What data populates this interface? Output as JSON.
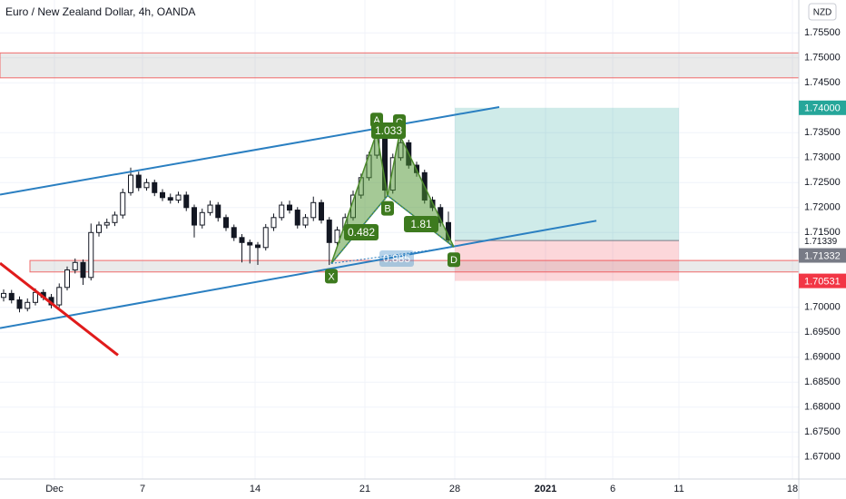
{
  "chart_data": {
    "type": "candlestick",
    "title": "Euro / New Zealand Dollar, 4h, OANDA",
    "currency_button": "NZD",
    "x": [
      -2.24,
      -1.89,
      -1.54,
      -1.19,
      -0.84,
      -0.49,
      -0.14,
      0.21,
      0.56,
      0.91,
      1.26,
      1.61,
      1.96,
      2.31,
      2.66,
      3.01,
      3.36,
      3.71,
      4.06,
      4.41,
      4.76,
      5.11,
      5.46,
      5.81,
      6.16,
      6.51,
      6.86,
      7.21,
      7.56,
      7.91,
      8.26,
      8.61,
      8.96,
      9.31,
      9.66,
      10.01,
      10.36,
      10.71,
      11.06,
      11.41,
      11.76,
      12.11,
      12.46,
      12.81,
      13.16,
      13.51,
      13.86,
      14.21,
      14.56,
      14.91,
      15.26,
      15.61,
      15.96,
      16.31,
      16.66,
      17.01,
      17.36
    ],
    "open": [
      1.702,
      1.7028,
      1.7015,
      1.6998,
      1.701,
      1.703,
      1.702,
      1.7005,
      1.704,
      1.7075,
      1.709,
      1.706,
      1.715,
      1.7165,
      1.717,
      1.7185,
      1.723,
      1.7265,
      1.724,
      1.725,
      1.723,
      1.722,
      1.7215,
      1.7225,
      1.72,
      1.7165,
      1.719,
      1.7205,
      1.718,
      1.716,
      1.714,
      1.713,
      1.7125,
      1.712,
      1.716,
      1.718,
      1.7205,
      1.7195,
      1.7165,
      1.718,
      1.721,
      1.7175,
      1.713,
      1.7155,
      1.718,
      1.7225,
      1.726,
      1.7305,
      1.7345,
      1.7235,
      1.73,
      1.733,
      1.7285,
      1.727,
      1.7215,
      1.72,
      1.717
    ],
    "high": [
      1.7036,
      1.7035,
      1.7022,
      1.7018,
      1.7038,
      1.7036,
      1.7027,
      1.7048,
      1.7082,
      1.7098,
      1.7096,
      1.7168,
      1.7172,
      1.7178,
      1.7192,
      1.7238,
      1.728,
      1.7272,
      1.7258,
      1.7256,
      1.7237,
      1.7228,
      1.7232,
      1.7232,
      1.7206,
      1.7198,
      1.7214,
      1.7211,
      1.7186,
      1.7166,
      1.7147,
      1.7136,
      1.7131,
      1.7167,
      1.7188,
      1.7212,
      1.7214,
      1.7201,
      1.7187,
      1.7222,
      1.7216,
      1.7181,
      1.7162,
      1.7188,
      1.7234,
      1.7268,
      1.7312,
      1.736,
      1.735,
      1.7308,
      1.734,
      1.7336,
      1.7292,
      1.7276,
      1.7222,
      1.7207,
      1.7192
    ],
    "low": [
      1.7012,
      1.7008,
      1.699,
      1.6992,
      1.7004,
      1.7014,
      1.6998,
      1.7,
      1.7034,
      1.7068,
      1.7045,
      1.7054,
      1.7142,
      1.7158,
      1.7163,
      1.7178,
      1.7224,
      1.7233,
      1.7234,
      1.7223,
      1.7213,
      1.7208,
      1.7209,
      1.7193,
      1.714,
      1.7158,
      1.7184,
      1.7172,
      1.7153,
      1.7133,
      1.709,
      1.7088,
      1.7085,
      1.7114,
      1.7153,
      1.7174,
      1.7188,
      1.7158,
      1.7159,
      1.7173,
      1.7168,
      1.7085,
      1.7124,
      1.7149,
      1.7174,
      1.7218,
      1.7254,
      1.7298,
      1.7215,
      1.7228,
      1.7294,
      1.7278,
      1.7262,
      1.7208,
      1.7193,
      1.7162,
      1.7128
    ],
    "close": [
      1.7028,
      1.7015,
      1.6998,
      1.701,
      1.703,
      1.702,
      1.7005,
      1.704,
      1.7075,
      1.709,
      1.706,
      1.715,
      1.7165,
      1.717,
      1.7185,
      1.723,
      1.7265,
      1.724,
      1.725,
      1.723,
      1.722,
      1.7215,
      1.7225,
      1.72,
      1.7165,
      1.719,
      1.7205,
      1.718,
      1.716,
      1.714,
      1.713,
      1.7125,
      1.712,
      1.716,
      1.718,
      1.7205,
      1.7195,
      1.7165,
      1.718,
      1.721,
      1.7175,
      1.713,
      1.7155,
      1.718,
      1.7225,
      1.726,
      1.7305,
      1.7345,
      1.7235,
      1.73,
      1.733,
      1.7285,
      1.727,
      1.7215,
      1.72,
      1.717,
      1.7135
    ],
    "xlim": [
      -2.4,
      32.8
    ],
    "ylim": [
      1.6656,
      1.7616
    ],
    "xticks": [
      {
        "value": 0,
        "label": "Dec"
      },
      {
        "value": 3.88,
        "label": "7"
      },
      {
        "value": 8.84,
        "label": "14"
      },
      {
        "value": 13.68,
        "label": "21"
      },
      {
        "value": 17.64,
        "label": "28"
      },
      {
        "value": 21.64,
        "label": "2021"
      },
      {
        "value": 24.6,
        "label": "6"
      },
      {
        "value": 27.52,
        "label": "11"
      },
      {
        "value": 32.52,
        "label": "18"
      }
    ],
    "yticks": [
      {
        "value": 1.755,
        "label": "1.75500"
      },
      {
        "value": 1.75,
        "label": "1.75000"
      },
      {
        "value": 1.745,
        "label": "1.74500"
      },
      {
        "value": 1.735,
        "label": "1.73500"
      },
      {
        "value": 1.73,
        "label": "1.73000"
      },
      {
        "value": 1.725,
        "label": "1.72500"
      },
      {
        "value": 1.72,
        "label": "1.72000"
      },
      {
        "value": 1.715,
        "label": "1.71500"
      },
      {
        "value": 1.7,
        "label": "1.70000"
      },
      {
        "value": 1.695,
        "label": "1.69500"
      },
      {
        "value": 1.69,
        "label": "1.69000"
      },
      {
        "value": 1.685,
        "label": "1.68500"
      },
      {
        "value": 1.68,
        "label": "1.68000"
      },
      {
        "value": 1.675,
        "label": "1.67500"
      },
      {
        "value": 1.67,
        "label": "1.67000"
      }
    ],
    "price_labels": [
      {
        "value": 1.74,
        "label": "1.74000"
      },
      {
        "value": 1.71339,
        "label": "1.71339"
      },
      {
        "value": 1.71332,
        "label": "1.71332"
      },
      {
        "value": 1.70531,
        "label": "1.70531"
      }
    ],
    "zones": [
      {
        "x": [
          -2.4,
          32.8
        ],
        "y": [
          1.746,
          1.751
        ]
      },
      {
        "x": [
          -1.08,
          32.8
        ],
        "y": [
          1.7071,
          1.7094
        ]
      }
    ],
    "lines": [
      {
        "x": [
          -2.4,
          19.6
        ],
        "y": [
          1.7226,
          1.74015
        ],
        "color": "#2a7fc1"
      },
      {
        "x": [
          -2.4,
          23.88
        ],
        "y": [
          1.69584,
          1.71736
        ],
        "color": "#2a7fc1"
      },
      {
        "x": [
          -2.4,
          2.8
        ],
        "y": [
          1.70886,
          1.69042
        ],
        "color": "#e01b1b"
      }
    ],
    "position": {
      "x": [
        17.64,
        27.52
      ],
      "entry": 1.71339,
      "target": 1.74,
      "stop": 1.70531
    },
    "pattern": {
      "points": [
        {
          "label": "X",
          "x": 12.2,
          "y": 1.7088
        },
        {
          "label": "A",
          "x": 14.2,
          "y": 1.735
        },
        {
          "label": "B",
          "x": 14.68,
          "y": 1.7224
        },
        {
          "label": "C",
          "x": 15.2,
          "y": 1.7347
        },
        {
          "label": "D",
          "x": 17.6,
          "y": 1.7121
        }
      ],
      "ratios": [
        "0.482",
        "1.033",
        "1.81",
        "0.885"
      ]
    }
  }
}
